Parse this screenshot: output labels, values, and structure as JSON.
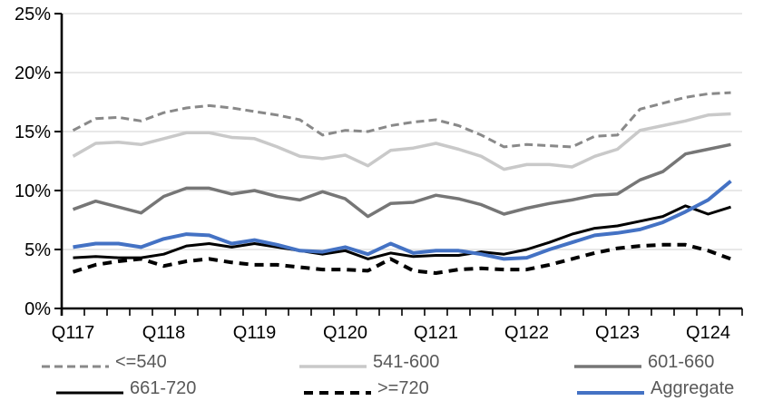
{
  "chart_data": {
    "type": "line",
    "title": "",
    "x_axis": {
      "tick_labels": [
        "Q117",
        "Q118",
        "Q119",
        "Q120",
        "Q121",
        "Q122",
        "Q123",
        "Q124"
      ],
      "points_per_label": 4,
      "n_points": 30
    },
    "y_axis": {
      "tick_labels": [
        "0%",
        "5%",
        "10%",
        "15%",
        "20%",
        "25%"
      ],
      "min": 0,
      "max": 25,
      "step": 5,
      "unit": "%"
    },
    "grid": "horizontal",
    "legend_position": "bottom",
    "quarters": [
      "Q117",
      "Q217",
      "Q317",
      "Q417",
      "Q118",
      "Q218",
      "Q318",
      "Q418",
      "Q119",
      "Q219",
      "Q319",
      "Q419",
      "Q120",
      "Q220",
      "Q320",
      "Q420",
      "Q121",
      "Q221",
      "Q321",
      "Q421",
      "Q122",
      "Q222",
      "Q322",
      "Q422",
      "Q123",
      "Q223",
      "Q323",
      "Q423",
      "Q124",
      "Q224"
    ],
    "series": [
      {
        "name": "<=540",
        "color": "#898989",
        "style": "dashed",
        "width": 3,
        "dash": [
          9,
          5
        ],
        "values": [
          15.1,
          16.1,
          16.2,
          15.9,
          16.6,
          17.0,
          17.2,
          17.0,
          16.7,
          16.4,
          16.0,
          14.7,
          15.1,
          15.0,
          15.5,
          15.8,
          16.0,
          15.5,
          14.7,
          13.7,
          13.9,
          13.8,
          13.7,
          14.6,
          14.7,
          16.9,
          17.4,
          17.9,
          18.2,
          18.3
        ]
      },
      {
        "name": "541-600",
        "color": "#C9C9C9",
        "style": "solid",
        "width": 3.5,
        "dash": null,
        "values": [
          12.9,
          14.0,
          14.1,
          13.9,
          14.4,
          14.9,
          14.9,
          14.5,
          14.4,
          13.7,
          12.9,
          12.7,
          13.0,
          12.1,
          13.4,
          13.6,
          14.0,
          13.5,
          12.9,
          11.8,
          12.2,
          12.2,
          12.0,
          12.9,
          13.5,
          15.1,
          15.5,
          15.9,
          16.4,
          16.5
        ]
      },
      {
        "name": "601-660",
        "color": "#767676",
        "style": "solid",
        "width": 3.5,
        "dash": null,
        "values": [
          8.4,
          9.1,
          8.6,
          8.1,
          9.5,
          10.2,
          10.2,
          9.7,
          10.0,
          9.5,
          9.2,
          9.9,
          9.3,
          7.8,
          8.9,
          9.0,
          9.6,
          9.3,
          8.8,
          8.0,
          8.5,
          8.9,
          9.2,
          9.6,
          9.7,
          10.9,
          11.6,
          13.1,
          13.5,
          13.9
        ]
      },
      {
        "name": "661-720",
        "color": "#000000",
        "style": "solid",
        "width": 3,
        "dash": null,
        "values": [
          4.3,
          4.4,
          4.3,
          4.3,
          4.6,
          5.3,
          5.5,
          5.2,
          5.5,
          5.2,
          4.9,
          4.6,
          4.9,
          4.2,
          4.7,
          4.4,
          4.5,
          4.5,
          4.8,
          4.6,
          5.0,
          5.6,
          6.3,
          6.8,
          7.0,
          7.4,
          7.8,
          8.7,
          8.0,
          8.6
        ]
      },
      {
        "name": ">=720",
        "color": "#000000",
        "style": "dashed",
        "width": 4,
        "dash": [
          10,
          7
        ],
        "values": [
          3.1,
          3.7,
          4.0,
          4.2,
          3.6,
          4.0,
          4.2,
          3.9,
          3.7,
          3.7,
          3.5,
          3.3,
          3.3,
          3.2,
          4.2,
          3.2,
          3.0,
          3.3,
          3.4,
          3.3,
          3.3,
          3.7,
          4.2,
          4.7,
          5.1,
          5.3,
          5.4,
          5.4,
          4.9,
          4.2
        ]
      },
      {
        "name": "Aggregate",
        "color": "#4472C4",
        "style": "solid",
        "width": 4,
        "dash": null,
        "values": [
          5.2,
          5.5,
          5.5,
          5.2,
          5.9,
          6.3,
          6.2,
          5.5,
          5.8,
          5.4,
          4.9,
          4.8,
          5.2,
          4.6,
          5.5,
          4.7,
          4.9,
          4.9,
          4.6,
          4.2,
          4.3,
          5.0,
          5.6,
          6.2,
          6.4,
          6.7,
          7.3,
          8.2,
          9.2,
          10.8
        ]
      }
    ],
    "colors": {
      "gridline": "#D9D9D9",
      "axis": "#000000",
      "axis_label": "#000000",
      "legend_text": "#595959",
      "accent_blue": "#4472C4"
    }
  }
}
